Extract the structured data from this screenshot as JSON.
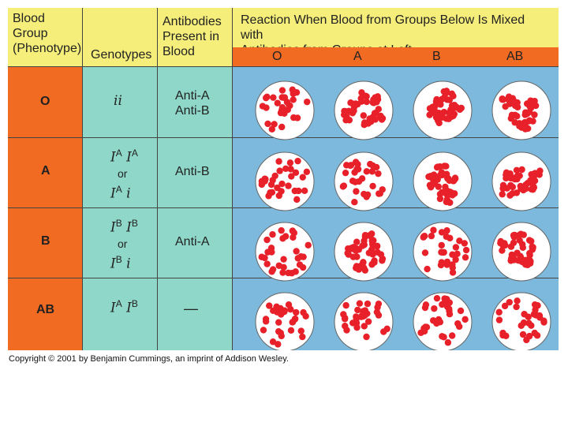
{
  "header": {
    "blood_group": [
      "Blood",
      "Group",
      "(Phenotype)"
    ],
    "genotypes": "Genotypes",
    "antibodies": [
      "Antibodies",
      "Present in",
      "Blood"
    ],
    "reaction": [
      "Reaction When Blood from Groups Below Is Mixed with",
      "Antibodies from Groups at Left"
    ],
    "reaction_columns": [
      "O",
      "A",
      "B",
      "AB"
    ]
  },
  "rows": [
    {
      "group": "O",
      "genotype_line1": {
        "a": "i",
        "a_sup": "",
        "b": "i",
        "b_sup": ""
      },
      "has_alt": false,
      "antibodies": [
        "Anti-A",
        "Anti-B"
      ],
      "reactions": [
        "dispersed",
        "clumped",
        "clumped",
        "clumped"
      ]
    },
    {
      "group": "A",
      "genotype_line1": {
        "a": "I",
        "a_sup": "A",
        "b": "I",
        "b_sup": "A"
      },
      "has_alt": true,
      "or": "or",
      "genotype_line2": {
        "a": "I",
        "a_sup": "A",
        "b": "i"
      },
      "antibodies": [
        "Anti-B"
      ],
      "reactions": [
        "dispersed",
        "dispersed",
        "clumped",
        "clumped"
      ]
    },
    {
      "group": "B",
      "genotype_line1": {
        "a": "I",
        "a_sup": "B",
        "b": "I",
        "b_sup": "B"
      },
      "has_alt": true,
      "or": "or",
      "genotype_line2": {
        "a": "I",
        "a_sup": "B",
        "b": "i"
      },
      "antibodies": [
        "Anti-A"
      ],
      "reactions": [
        "dispersed",
        "clumped",
        "dispersed",
        "clumped"
      ]
    },
    {
      "group": "AB",
      "genotype_line1": {
        "a": "I",
        "a_sup": "A",
        "b": "I",
        "b_sup": "B"
      },
      "has_alt": false,
      "antibodies": [
        "—"
      ],
      "reactions": [
        "dispersed",
        "dispersed",
        "dispersed",
        "dispersed"
      ]
    }
  ],
  "copyright": "Copyright © 2001 by Benjamin Cummings, an imprint of Addison Wesley.",
  "colors": {
    "orange": "#f26b22",
    "yellow": "#f5ee7a",
    "teal": "#8fd8c9",
    "blue": "#7db9dc",
    "cell_red": "#e8202a"
  }
}
